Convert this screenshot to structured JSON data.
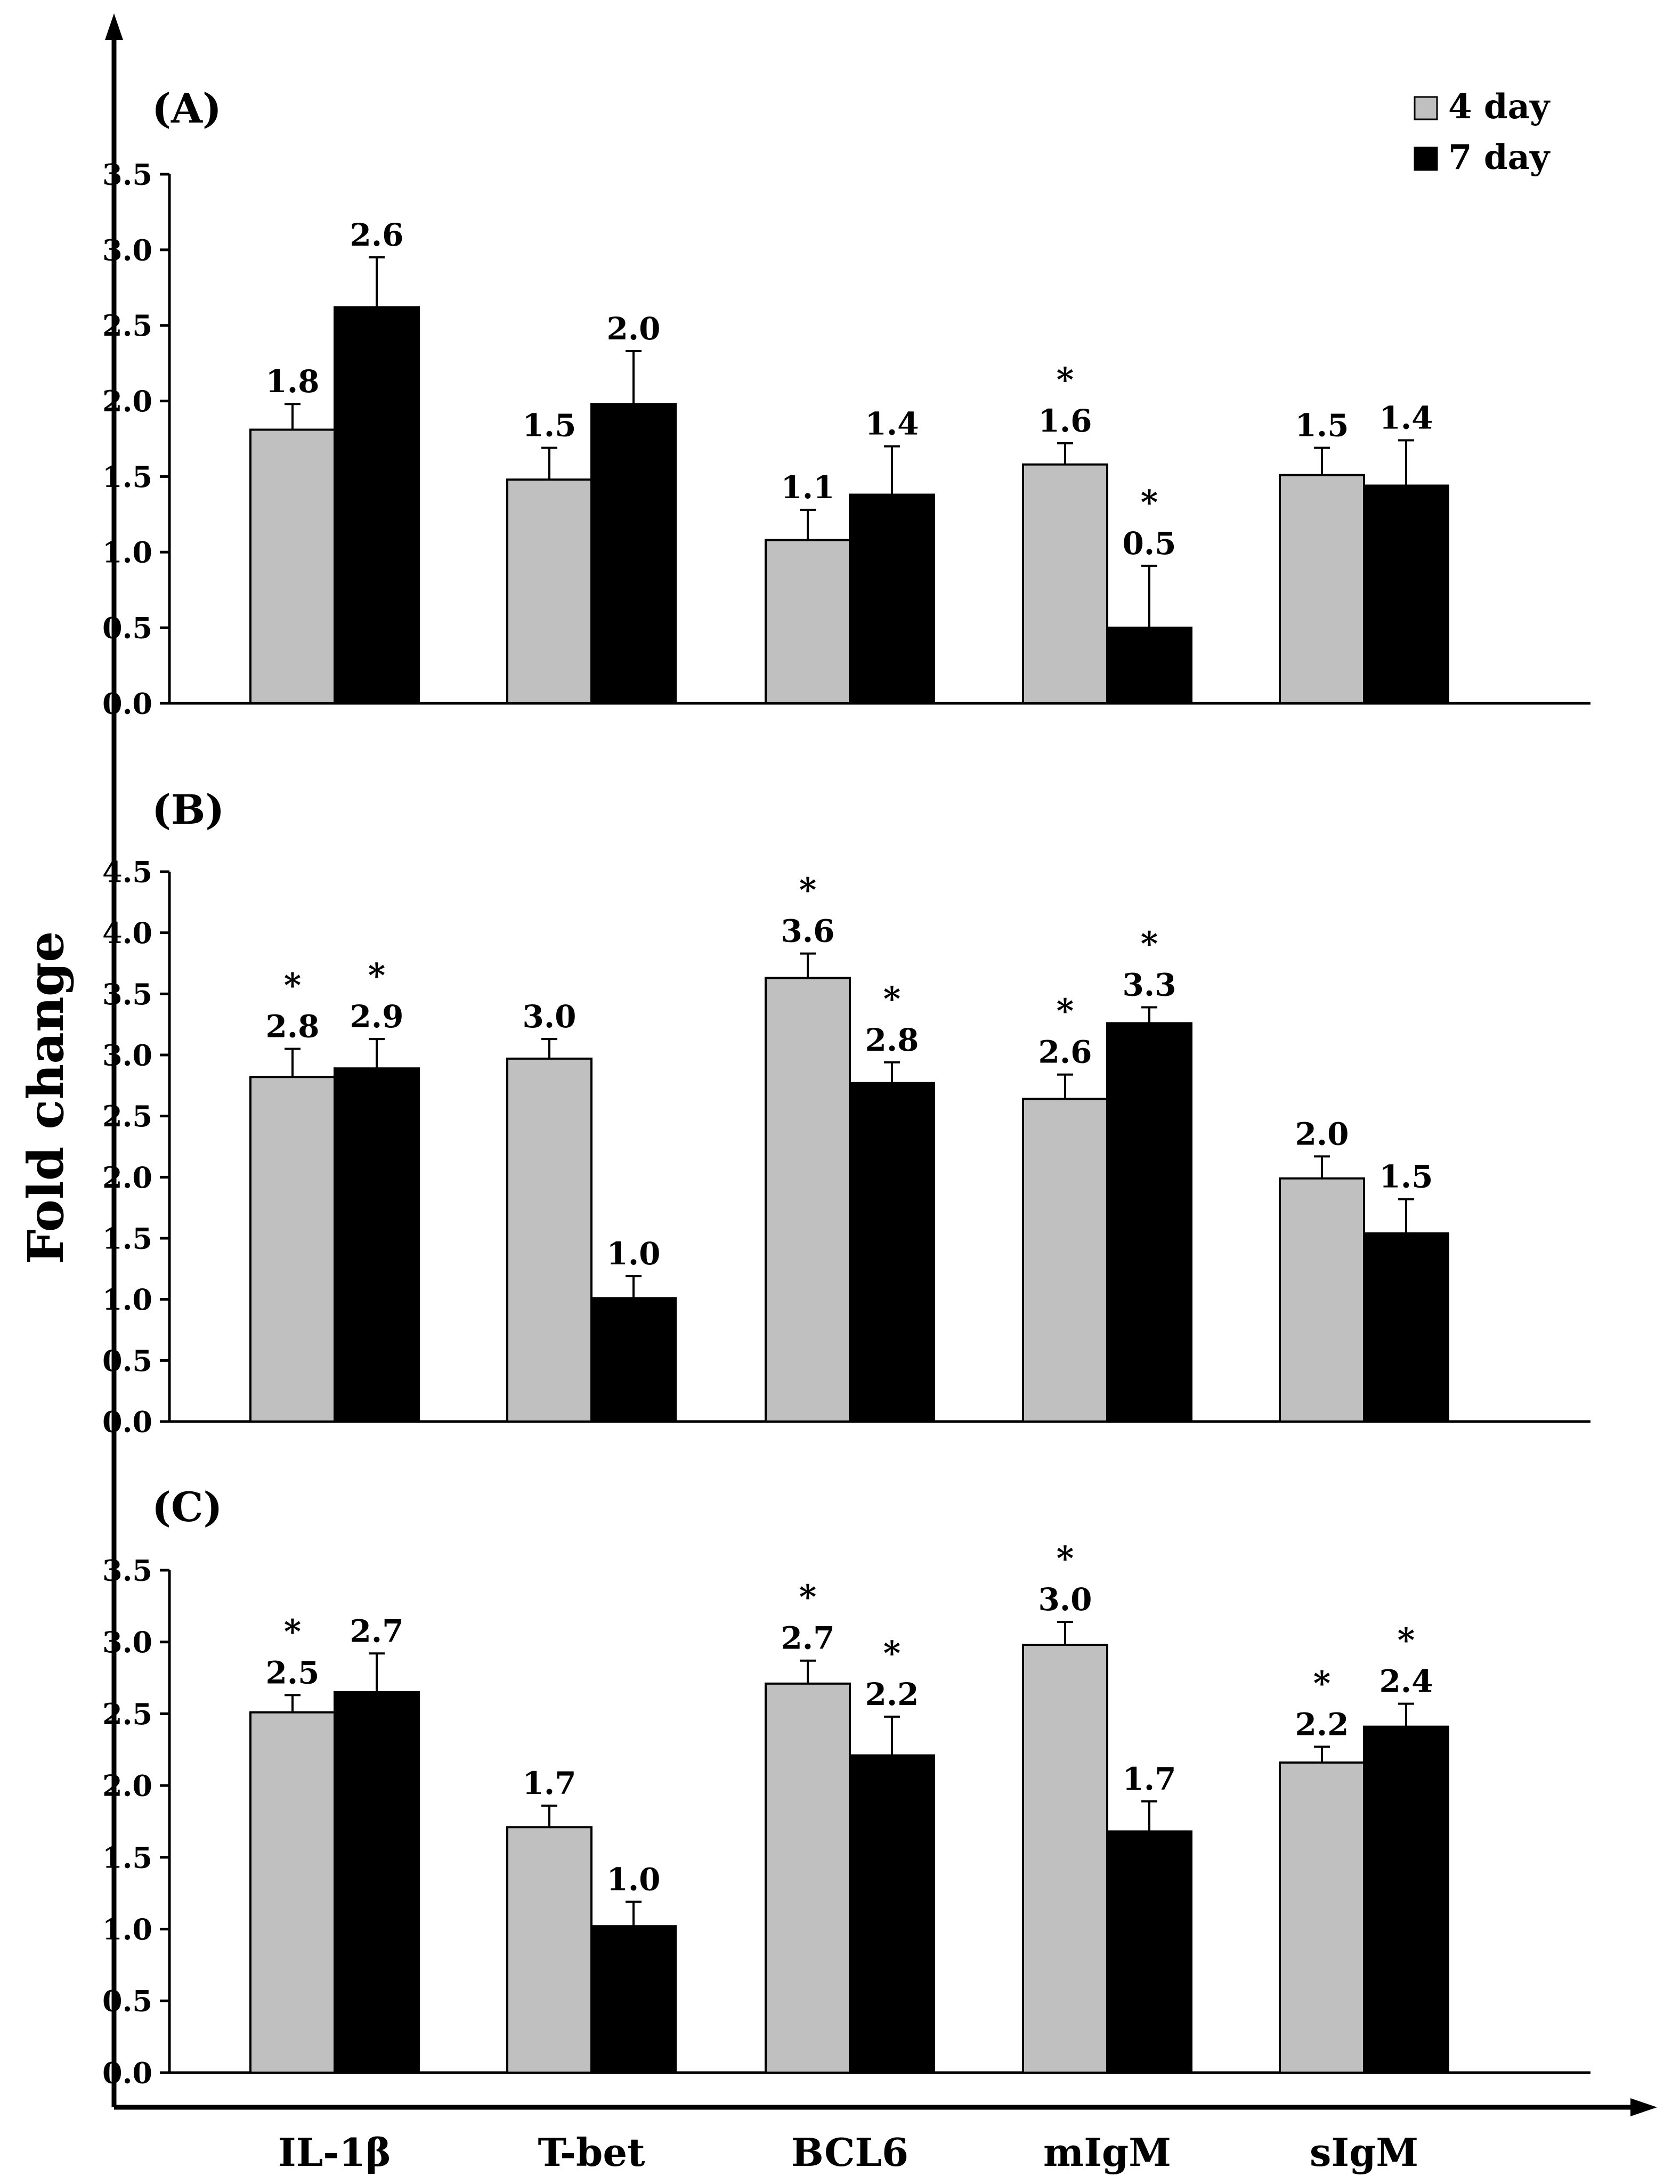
{
  "colors": {
    "day4": "#C0C0C0",
    "day7": "#000000",
    "axis": "#000000"
  },
  "shared": {
    "ylabel": "Fold change",
    "categories": [
      "IL-1β",
      "T-bet",
      "BCL6",
      "mIgM",
      "sIgM"
    ],
    "legend": [
      {
        "label": "4 day",
        "color": "#C0C0C0"
      },
      {
        "label": "7 day",
        "color": "#000000"
      }
    ],
    "legend_position": "top-right"
  },
  "chart_data": [
    {
      "type": "bar",
      "title": "(A)",
      "xlabel": "",
      "ylabel": "Fold change",
      "categories": [
        "IL-1β",
        "T-bet",
        "BCL6",
        "mIgM",
        "sIgM"
      ],
      "ylim": [
        0,
        3.5
      ],
      "yticks": [
        "0.0",
        "0.5",
        "1.0",
        "1.5",
        "2.0",
        "2.5",
        "3.0",
        "3.5"
      ],
      "series": [
        {
          "name": "4 day",
          "values": [
            1.81,
            1.48,
            1.08,
            1.58,
            1.51
          ],
          "errors": [
            0.17,
            0.21,
            0.2,
            0.14,
            0.18
          ],
          "labels": [
            "1.8",
            "1.5",
            "1.1",
            "1.6",
            "1.5"
          ],
          "stars": [
            false,
            false,
            false,
            true,
            false
          ]
        },
        {
          "name": "7 day",
          "values": [
            2.62,
            1.98,
            1.38,
            0.5,
            1.44
          ],
          "errors": [
            0.33,
            0.35,
            0.32,
            0.41,
            0.3
          ],
          "labels": [
            "2.6",
            "2.0",
            "1.4",
            "0.5",
            "1.4"
          ],
          "stars": [
            false,
            false,
            false,
            true,
            false
          ]
        }
      ]
    },
    {
      "type": "bar",
      "title": "(B)",
      "xlabel": "",
      "ylabel": "Fold change",
      "categories": [
        "IL-1β",
        "T-bet",
        "BCL6",
        "mIgM",
        "sIgM"
      ],
      "ylim": [
        0,
        4.5
      ],
      "yticks": [
        "0.0",
        "0.5",
        "1.0",
        "1.5",
        "2.0",
        "2.5",
        "3.0",
        "3.5",
        "4.0",
        "4.5"
      ],
      "series": [
        {
          "name": "4 day",
          "values": [
            2.82,
            2.97,
            3.63,
            2.64,
            1.99
          ],
          "errors": [
            0.23,
            0.16,
            0.2,
            0.2,
            0.18
          ],
          "labels": [
            "2.8",
            "3.0",
            "3.6",
            "2.6",
            "2.0"
          ],
          "stars": [
            true,
            false,
            true,
            true,
            false
          ]
        },
        {
          "name": "7 day",
          "values": [
            2.89,
            1.01,
            2.77,
            3.26,
            1.54
          ],
          "errors": [
            0.24,
            0.18,
            0.17,
            0.13,
            0.28
          ],
          "labels": [
            "2.9",
            "1.0",
            "2.8",
            "3.3",
            "1.5"
          ],
          "stars": [
            true,
            false,
            true,
            true,
            false
          ]
        }
      ]
    },
    {
      "type": "bar",
      "title": "(C)",
      "xlabel": "",
      "ylabel": "Fold change",
      "categories": [
        "IL-1β",
        "T-bet",
        "BCL6",
        "mIgM",
        "sIgM"
      ],
      "ylim": [
        0,
        3.5
      ],
      "yticks": [
        "0.0",
        "0.5",
        "1.0",
        "1.5",
        "2.0",
        "2.5",
        "3.0",
        "3.5"
      ],
      "series": [
        {
          "name": "4 day",
          "values": [
            2.51,
            1.71,
            2.71,
            2.98,
            2.16
          ],
          "errors": [
            0.12,
            0.15,
            0.16,
            0.16,
            0.11
          ],
          "labels": [
            "2.5",
            "1.7",
            "2.7",
            "3.0",
            "2.2"
          ],
          "stars": [
            true,
            false,
            true,
            true,
            true
          ]
        },
        {
          "name": "7 day",
          "values": [
            2.65,
            1.02,
            2.21,
            1.68,
            2.41
          ],
          "errors": [
            0.27,
            0.17,
            0.27,
            0.21,
            0.16
          ],
          "labels": [
            "2.7",
            "1.0",
            "2.2",
            "1.7",
            "2.4"
          ],
          "stars": [
            false,
            false,
            true,
            false,
            true
          ]
        }
      ]
    }
  ]
}
